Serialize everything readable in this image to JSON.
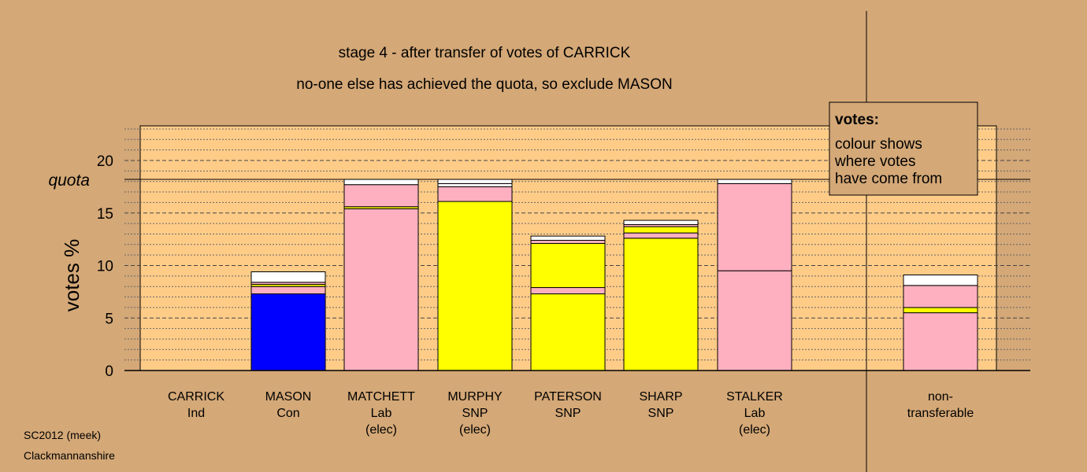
{
  "chart_data": {
    "type": "bar",
    "stacked": true,
    "title": "stage 4 - after transfer of votes of CARRICK",
    "subtitle": "no-one else has achieved the quota, so exclude MASON",
    "ylabel": "votes %",
    "ylim": [
      0,
      23.2
    ],
    "yticks": [
      0,
      5,
      10,
      15,
      20
    ],
    "quota": 18.2,
    "quota_label": "quota",
    "grid": true,
    "colors": {
      "background": "#d4a877",
      "plot_area": "#ffcc88",
      "blue": "#0000ff",
      "pink": "#ffb0c0",
      "yellow": "#ffff00",
      "white": "#ffffff"
    },
    "candidates": [
      {
        "name": "CARRICK",
        "party": "Ind",
        "elected": "",
        "segments": []
      },
      {
        "name": "MASON",
        "party": "Con",
        "elected": "",
        "segments": [
          {
            "color": "blue",
            "value": 7.3
          },
          {
            "color": "pink",
            "value": 0.7
          },
          {
            "color": "yellow",
            "value": 0.2
          },
          {
            "color": "pink",
            "value": 0.2
          },
          {
            "color": "white",
            "value": 1.0
          }
        ]
      },
      {
        "name": "MATCHETT",
        "party": "Lab",
        "elected": "(elec)",
        "segments": [
          {
            "color": "pink",
            "value": 15.4
          },
          {
            "color": "yellow",
            "value": 0.2
          },
          {
            "color": "pink",
            "value": 2.1
          },
          {
            "color": "white",
            "value": 0.5
          }
        ]
      },
      {
        "name": "MURPHY",
        "party": "SNP",
        "elected": "(elec)",
        "segments": [
          {
            "color": "yellow",
            "value": 16.1
          },
          {
            "color": "pink",
            "value": 1.4
          },
          {
            "color": "white",
            "value": 0.3
          },
          {
            "color": "white",
            "value": 0.4
          }
        ]
      },
      {
        "name": "PATERSON",
        "party": "SNP",
        "elected": "",
        "segments": [
          {
            "color": "yellow",
            "value": 7.3
          },
          {
            "color": "pink",
            "value": 0.6
          },
          {
            "color": "yellow",
            "value": 4.2
          },
          {
            "color": "pink",
            "value": 0.3
          },
          {
            "color": "white",
            "value": 0.4
          }
        ]
      },
      {
        "name": "SHARP",
        "party": "SNP",
        "elected": "",
        "segments": [
          {
            "color": "yellow",
            "value": 12.6
          },
          {
            "color": "pink",
            "value": 0.5
          },
          {
            "color": "yellow",
            "value": 0.6
          },
          {
            "color": "pink",
            "value": 0.2
          },
          {
            "color": "white",
            "value": 0.4
          }
        ]
      },
      {
        "name": "STALKER",
        "party": "Lab",
        "elected": "(elec)",
        "segments": [
          {
            "color": "pink",
            "value": 9.5
          },
          {
            "color": "pink",
            "value": 8.3
          },
          {
            "color": "white",
            "value": 0.4
          }
        ]
      }
    ],
    "nontransferable": {
      "label1": "non-",
      "label2": "transferable",
      "segments": [
        {
          "color": "pink",
          "value": 5.5
        },
        {
          "color": "yellow",
          "value": 0.5
        },
        {
          "color": "pink",
          "value": 2.1
        },
        {
          "color": "white",
          "value": 1.0
        }
      ]
    },
    "legend": {
      "title": "votes:",
      "lines": [
        "colour shows",
        "where votes",
        "have come from"
      ]
    },
    "footer": [
      "SC2012 (meek)",
      "Clackmannanshire"
    ]
  }
}
